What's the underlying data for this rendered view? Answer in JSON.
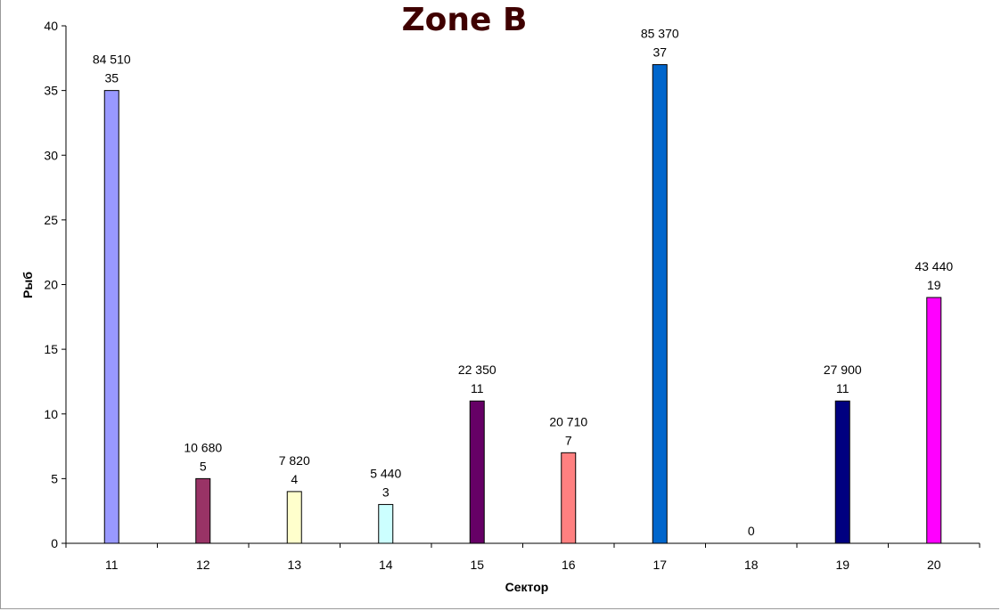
{
  "chart_data": {
    "type": "bar",
    "title": "Zone B",
    "xlabel": "Сектор",
    "ylabel": "Рыб",
    "ylim": [
      0,
      40
    ],
    "yticks": [
      0,
      5,
      10,
      15,
      20,
      25,
      30,
      35,
      40
    ],
    "categories": [
      "11",
      "12",
      "13",
      "14",
      "15",
      "16",
      "17",
      "18",
      "19",
      "20"
    ],
    "values": [
      35,
      5,
      4,
      3,
      11,
      7,
      37,
      0,
      11,
      19
    ],
    "weight_labels": [
      "84 510",
      "10 680",
      "7 820",
      "5 440",
      "22 350",
      "20 710",
      "85 370",
      "",
      "27 900",
      "43 440"
    ],
    "colors": [
      "#9999ff",
      "#993366",
      "#ffffcc",
      "#ccffff",
      "#660066",
      "#ff8080",
      "#0066cc",
      "#ccccff",
      "#000080",
      "#ff00ff"
    ],
    "grid": false,
    "legend": "none"
  }
}
